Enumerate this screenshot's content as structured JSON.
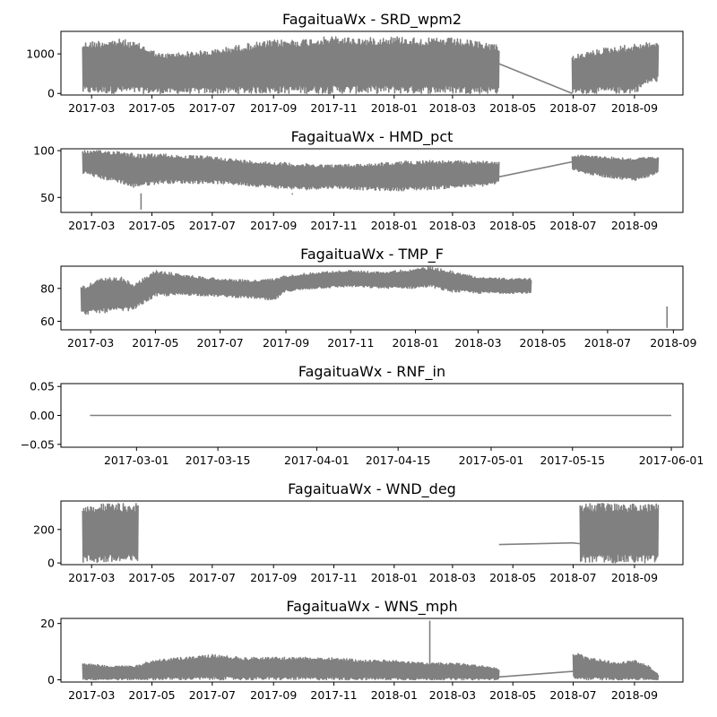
{
  "colors": {
    "series": "#808080",
    "axes": "#000000",
    "background": "#ffffff"
  },
  "chart_data": [
    {
      "type": "line",
      "title": "FagaituaWx - SRD_wpm2",
      "xlabel": "",
      "ylabel": "",
      "grid": false,
      "xlim": [
        "2017-01-29",
        "2018-10-20"
      ],
      "ylim": [
        -40,
        1570
      ],
      "x_ticks": [
        "2017-03-01",
        "2017-05-01",
        "2017-07-01",
        "2017-09-01",
        "2017-11-01",
        "2018-01-01",
        "2018-03-01",
        "2018-05-01",
        "2018-07-01",
        "2018-09-01"
      ],
      "x_tick_labels": [
        "2017-03",
        "2017-05",
        "2017-07",
        "2017-09",
        "2017-11",
        "2018-01",
        "2018-03",
        "2018-05",
        "2018-07",
        "2018-09"
      ],
      "y_ticks": [
        0,
        1000
      ],
      "y_tick_labels": [
        "0",
        "1000"
      ],
      "series": [
        {
          "envelope": {
            "x": [
              "2017-02-20",
              "2017-03-10",
              "2017-04-01",
              "2017-04-20",
              "2017-05-10",
              "2017-06-01",
              "2017-07-01",
              "2017-08-01",
              "2017-09-01",
              "2017-10-01",
              "2017-11-01",
              "2017-12-01",
              "2018-01-01",
              "2018-02-01",
              "2018-03-01",
              "2018-04-01",
              "2018-04-17"
            ],
            "low": [
              0,
              0,
              0,
              0,
              0,
              0,
              0,
              0,
              0,
              0,
              0,
              0,
              0,
              0,
              0,
              0,
              0
            ],
            "high": [
              1300,
              1350,
              1380,
              1250,
              1000,
              1050,
              1100,
              1250,
              1350,
              1380,
              1450,
              1400,
              1450,
              1400,
              1400,
              1300,
              1250
            ]
          },
          "line": {
            "x": [
              "2018-04-17",
              "2018-06-30"
            ],
            "y": [
              750,
              0
            ]
          },
          "envelope2": {
            "x": [
              "2018-06-30",
              "2018-07-15",
              "2018-08-01",
              "2018-08-15",
              "2018-09-01",
              "2018-09-15",
              "2018-09-25"
            ],
            "low": [
              0,
              0,
              0,
              0,
              0,
              250,
              300
            ],
            "high": [
              950,
              1050,
              1150,
              1200,
              1250,
              1300,
              1300
            ]
          }
        }
      ]
    },
    {
      "type": "line",
      "title": "FagaituaWx - HMD_pct",
      "xlabel": "",
      "ylabel": "",
      "grid": false,
      "xlim": [
        "2017-01-29",
        "2018-10-20"
      ],
      "ylim": [
        34,
        102
      ],
      "x_ticks": [
        "2017-03-01",
        "2017-05-01",
        "2017-07-01",
        "2017-09-01",
        "2017-11-01",
        "2018-01-01",
        "2018-03-01",
        "2018-05-01",
        "2018-07-01",
        "2018-09-01"
      ],
      "x_tick_labels": [
        "2017-03",
        "2017-05",
        "2017-07",
        "2017-09",
        "2017-11",
        "2018-01",
        "2018-03",
        "2018-05",
        "2018-07",
        "2018-09"
      ],
      "y_ticks": [
        50,
        100
      ],
      "y_tick_labels": [
        "50",
        "100"
      ],
      "series": [
        {
          "envelope": {
            "x": [
              "2017-02-20",
              "2017-03-10",
              "2017-04-01",
              "2017-04-10",
              "2017-04-20",
              "2017-05-10",
              "2017-06-01",
              "2017-07-01",
              "2017-08-01",
              "2017-09-01",
              "2017-10-01",
              "2017-11-01",
              "2017-12-01",
              "2018-01-01",
              "2018-02-01",
              "2018-03-01",
              "2018-04-01",
              "2018-04-17"
            ],
            "low": [
              76,
              70,
              65,
              60,
              62,
              65,
              65,
              65,
              63,
              60,
              58,
              60,
              58,
              57,
              58,
              60,
              62,
              65
            ],
            "high": [
              100,
              100,
              100,
              98,
              96,
              97,
              95,
              94,
              90,
              88,
              86,
              85,
              86,
              88,
              90,
              89,
              89,
              88
            ]
          },
          "spikes": [
            {
              "x": "2017-04-20",
              "y": 37
            },
            {
              "x": "2017-09-20",
              "y": 53
            }
          ],
          "line": {
            "x": [
              "2018-04-17",
              "2018-06-30"
            ],
            "y": [
              72,
              88
            ]
          },
          "envelope2": {
            "x": [
              "2018-06-30",
              "2018-07-15",
              "2018-08-01",
              "2018-08-15",
              "2018-09-01",
              "2018-09-15",
              "2018-09-25"
            ],
            "low": [
              80,
              75,
              72,
              70,
              68,
              72,
              76
            ],
            "high": [
              95,
              95,
              94,
              93,
              92,
              93,
              93
            ]
          }
        }
      ]
    },
    {
      "type": "line",
      "title": "FagaituaWx - TMP_F",
      "xlabel": "",
      "ylabel": "",
      "grid": false,
      "xlim": [
        "2017-02-01",
        "2018-09-10"
      ],
      "ylim": [
        54.8,
        93.5
      ],
      "x_ticks": [
        "2017-03-01",
        "2017-05-01",
        "2017-07-01",
        "2017-09-01",
        "2017-11-01",
        "2018-01-01",
        "2018-03-01",
        "2018-05-01",
        "2018-07-01",
        "2018-09-01"
      ],
      "x_tick_labels": [
        "2017-03",
        "2017-05",
        "2017-07",
        "2017-09",
        "2017-11",
        "2018-01",
        "2018-03",
        "2018-05",
        "2018-07",
        "2018-09"
      ],
      "y_ticks": [
        60,
        80
      ],
      "y_tick_labels": [
        "60",
        "80"
      ],
      "series": [
        {
          "envelope": {
            "x": [
              "2017-02-20",
              "2017-03-10",
              "2017-04-01",
              "2017-04-10",
              "2017-05-01",
              "2017-06-01",
              "2017-07-01",
              "2017-08-01",
              "2017-08-20",
              "2017-09-01",
              "2017-10-01",
              "2017-11-01",
              "2017-12-01",
              "2018-01-01",
              "2018-01-15",
              "2018-02-01",
              "2018-03-01",
              "2018-04-01",
              "2018-04-20"
            ],
            "low": [
              64,
              65,
              66,
              67,
              75,
              76,
              75,
              74,
              72,
              78,
              80,
              81,
              80,
              80,
              81,
              78,
              77,
              77,
              77
            ],
            "high": [
              81,
              86,
              87,
              82,
              91,
              88,
              86,
              85,
              86,
              88,
              90,
              91,
              90,
              92,
              93,
              91,
              87,
              86,
              86
            ]
          },
          "line2": {
            "x": [
              "2018-08-26",
              "2018-08-26"
            ],
            "y": [
              56,
              69
            ]
          }
        }
      ]
    },
    {
      "type": "line",
      "title": "FagaituaWx - RNF_in",
      "xlabel": "",
      "ylabel": "",
      "grid": false,
      "xlim": [
        "2017-02-16",
        "2017-06-03"
      ],
      "ylim": [
        -0.055,
        0.055
      ],
      "x_ticks": [
        "2017-03-01",
        "2017-03-15",
        "2017-04-01",
        "2017-04-15",
        "2017-05-01",
        "2017-05-15",
        "2017-06-01"
      ],
      "x_tick_labels": [
        "2017-03-01",
        "2017-03-15",
        "2017-04-01",
        "2017-04-15",
        "2017-05-01",
        "2017-05-15",
        "2017-06-01"
      ],
      "y_ticks": [
        -0.05,
        0.0,
        0.05
      ],
      "y_tick_labels": [
        "−0.05",
        "0.00",
        "0.05"
      ],
      "series": [
        {
          "line": {
            "x": [
              "2017-02-21",
              "2017-06-01"
            ],
            "y": [
              0,
              0
            ]
          }
        }
      ]
    },
    {
      "type": "line",
      "title": "FagaituaWx - WND_deg",
      "xlabel": "",
      "ylabel": "",
      "grid": false,
      "xlim": [
        "2017-01-29",
        "2018-10-20"
      ],
      "ylim": [
        -10,
        370
      ],
      "x_ticks": [
        "2017-03-01",
        "2017-05-01",
        "2017-07-01",
        "2017-09-01",
        "2017-11-01",
        "2018-01-01",
        "2018-03-01",
        "2018-05-01",
        "2018-07-01",
        "2018-09-01"
      ],
      "x_tick_labels": [
        "2017-03",
        "2017-05",
        "2017-07",
        "2017-09",
        "2017-11",
        "2018-01",
        "2018-03",
        "2018-05",
        "2018-07",
        "2018-09"
      ],
      "y_ticks": [
        0,
        200
      ],
      "y_tick_labels": [
        "0",
        "200"
      ],
      "series": [
        {
          "envelope": {
            "x": [
              "2017-02-20",
              "2017-04-17"
            ],
            "low": [
              0,
              0
            ],
            "high": [
              355,
              355
            ]
          },
          "line": {
            "x": [
              "2018-04-17",
              "2018-06-30",
              "2018-07-08"
            ],
            "y": [
              110,
              120,
              115
            ]
          },
          "envelope2": {
            "x": [
              "2018-07-08",
              "2018-09-25"
            ],
            "low": [
              0,
              0
            ],
            "high": [
              355,
              355
            ]
          }
        }
      ]
    },
    {
      "type": "line",
      "title": "FagaituaWx - WNS_mph",
      "xlabel": "",
      "ylabel": "",
      "grid": false,
      "xlim": [
        "2017-01-29",
        "2018-10-20"
      ],
      "ylim": [
        -0.8,
        21.8
      ],
      "x_ticks": [
        "2017-03-01",
        "2017-05-01",
        "2017-07-01",
        "2017-09-01",
        "2017-11-01",
        "2018-01-01",
        "2018-03-01",
        "2018-05-01",
        "2018-07-01",
        "2018-09-01"
      ],
      "x_tick_labels": [
        "2017-03",
        "2017-05",
        "2017-07",
        "2017-09",
        "2017-11",
        "2018-01",
        "2018-03",
        "2018-05",
        "2018-07",
        "2018-09"
      ],
      "y_ticks": [
        0,
        20
      ],
      "y_tick_labels": [
        "0",
        "20"
      ],
      "series": [
        {
          "envelope": {
            "x": [
              "2017-02-20",
              "2017-03-15",
              "2017-04-15",
              "2017-05-01",
              "2017-06-01",
              "2017-07-01",
              "2017-08-01",
              "2017-09-01",
              "2017-10-01",
              "2017-11-01",
              "2017-12-01",
              "2018-01-01",
              "2018-02-01",
              "2018-03-01",
              "2018-04-01",
              "2018-04-17"
            ],
            "low": [
              0,
              0,
              0,
              0,
              0,
              0,
              0,
              0,
              0,
              0,
              0,
              0,
              0,
              0,
              0,
              0
            ],
            "high": [
              6,
              5,
              5,
              7,
              8,
              9,
              8,
              8,
              8,
              8,
              7,
              7,
              6,
              6,
              5,
              4
            ]
          },
          "spikes": [
            {
              "x": "2018-02-06",
              "y": 21
            }
          ],
          "line": {
            "x": [
              "2018-04-17",
              "2018-07-01"
            ],
            "y": [
              1,
              3
            ]
          },
          "envelope2": {
            "x": [
              "2018-07-01",
              "2018-07-15",
              "2018-08-01",
              "2018-08-15",
              "2018-09-01",
              "2018-09-15",
              "2018-09-25"
            ],
            "low": [
              0,
              0,
              0,
              0,
              0,
              0,
              0
            ],
            "high": [
              10,
              8,
              7,
              6,
              7,
              5,
              2
            ]
          }
        }
      ]
    }
  ]
}
